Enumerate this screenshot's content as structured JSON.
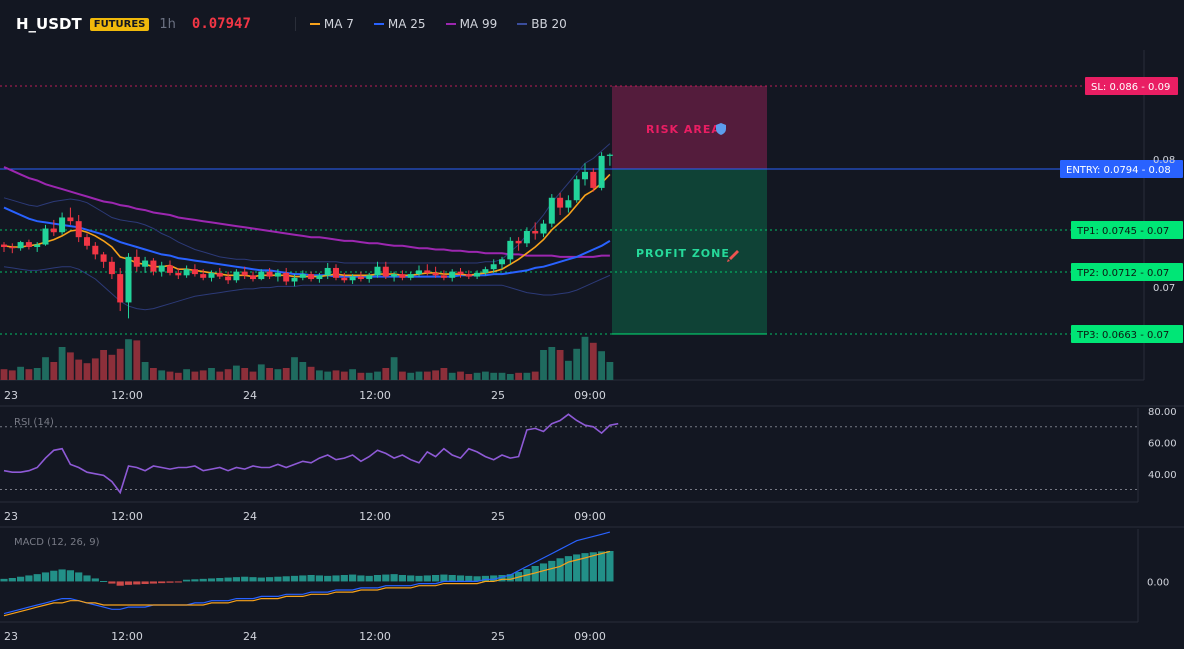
{
  "header": {
    "symbol": "H_USDT",
    "badge": "FUTURES",
    "timeframe": "1h",
    "price": "0.07947",
    "legend": [
      {
        "label": "MA 7",
        "color": "#f7a21b"
      },
      {
        "label": "MA 25",
        "color": "#2962ff"
      },
      {
        "label": "MA 99",
        "color": "#9c27b0"
      },
      {
        "label": "BB 20",
        "color": "#3a4d9c"
      }
    ]
  },
  "colors": {
    "up": "#22d39a",
    "down": "#f23645",
    "vol_up": "#1f6b5f",
    "vol_down": "#8c2f3a",
    "background": "#131722"
  },
  "zones": {
    "risk_label": "RISK AREA",
    "profit_label": "PROFIT ZONE"
  },
  "levels": [
    {
      "name": "sl",
      "label": "SL: 0.086",
      "axis_value": "0.09",
      "value": 0.086,
      "color": "#e91e63"
    },
    {
      "name": "entry",
      "label": "ENTRY: 0.0794",
      "axis_value": "0.08",
      "value": 0.0794,
      "color": "#2962ff"
    },
    {
      "name": "tp1",
      "label": "TP1: 0.0745",
      "axis_value": "0.07",
      "value": 0.0745,
      "color": "#00e676"
    },
    {
      "name": "tp2",
      "label": "TP2: 0.0712",
      "axis_value": "0.07",
      "value": 0.0712,
      "color": "#00e676"
    },
    {
      "name": "tp3",
      "label": "TP3: 0.0663",
      "axis_value": "0.07",
      "value": 0.0663,
      "color": "#00e676"
    }
  ],
  "chart_data": {
    "type": "candlestick",
    "price_axis": {
      "min": 0.0612,
      "max": 0.088,
      "ticks": [
        "0.08",
        "0.07"
      ]
    },
    "x_ticks": [
      "23",
      "12:00",
      "24",
      "12:00",
      "25",
      "09:00"
    ],
    "candles": [
      [
        0.0722,
        0.0724,
        0.0716,
        0.072
      ],
      [
        0.072,
        0.0723,
        0.0715,
        0.0719
      ],
      [
        0.0719,
        0.0725,
        0.0717,
        0.0724
      ],
      [
        0.0724,
        0.0726,
        0.0718,
        0.072
      ],
      [
        0.072,
        0.0724,
        0.0716,
        0.0722
      ],
      [
        0.0722,
        0.0738,
        0.0721,
        0.0735
      ],
      [
        0.0735,
        0.0742,
        0.0729,
        0.0732
      ],
      [
        0.0732,
        0.0748,
        0.073,
        0.0744
      ],
      [
        0.0744,
        0.0752,
        0.0738,
        0.0741
      ],
      [
        0.0741,
        0.0746,
        0.0724,
        0.0728
      ],
      [
        0.0728,
        0.0731,
        0.0718,
        0.0721
      ],
      [
        0.0721,
        0.0724,
        0.071,
        0.0714
      ],
      [
        0.0714,
        0.0716,
        0.0703,
        0.0708
      ],
      [
        0.0708,
        0.0712,
        0.0694,
        0.0698
      ],
      [
        0.0698,
        0.0703,
        0.0668,
        0.0675
      ],
      [
        0.0675,
        0.0715,
        0.0662,
        0.0712
      ],
      [
        0.0712,
        0.0718,
        0.07,
        0.0704
      ],
      [
        0.0704,
        0.0712,
        0.0699,
        0.0709
      ],
      [
        0.0709,
        0.0711,
        0.0697,
        0.07
      ],
      [
        0.07,
        0.0708,
        0.0696,
        0.0705
      ],
      [
        0.0705,
        0.0709,
        0.0697,
        0.0699
      ],
      [
        0.0699,
        0.0703,
        0.0694,
        0.0697
      ],
      [
        0.0697,
        0.0705,
        0.0695,
        0.0702
      ],
      [
        0.0702,
        0.0706,
        0.0696,
        0.0698
      ],
      [
        0.0698,
        0.0702,
        0.0693,
        0.0695
      ],
      [
        0.0695,
        0.0701,
        0.0692,
        0.0699
      ],
      [
        0.0699,
        0.0703,
        0.0694,
        0.0696
      ],
      [
        0.0696,
        0.07,
        0.069,
        0.0693
      ],
      [
        0.0693,
        0.0702,
        0.0691,
        0.07
      ],
      [
        0.07,
        0.0704,
        0.0694,
        0.0697
      ],
      [
        0.0697,
        0.07,
        0.0692,
        0.0694
      ],
      [
        0.0694,
        0.0702,
        0.0693,
        0.07
      ],
      [
        0.07,
        0.0703,
        0.0694,
        0.0696
      ],
      [
        0.0696,
        0.0702,
        0.0692,
        0.0699
      ],
      [
        0.0699,
        0.0703,
        0.0689,
        0.0692
      ],
      [
        0.0692,
        0.0698,
        0.0688,
        0.0695
      ],
      [
        0.0695,
        0.0701,
        0.0693,
        0.0698
      ],
      [
        0.0698,
        0.07,
        0.0692,
        0.0694
      ],
      [
        0.0694,
        0.0699,
        0.0691,
        0.0697
      ],
      [
        0.0697,
        0.0707,
        0.0694,
        0.0703
      ],
      [
        0.0703,
        0.0706,
        0.0693,
        0.0695
      ],
      [
        0.0695,
        0.0699,
        0.0691,
        0.0693
      ],
      [
        0.0693,
        0.0698,
        0.069,
        0.0696
      ],
      [
        0.0696,
        0.07,
        0.0692,
        0.0694
      ],
      [
        0.0694,
        0.0699,
        0.0691,
        0.0697
      ],
      [
        0.0697,
        0.0708,
        0.0695,
        0.0704
      ],
      [
        0.0704,
        0.0708,
        0.0694,
        0.0696
      ],
      [
        0.0696,
        0.07,
        0.0692,
        0.0698
      ],
      [
        0.0698,
        0.0701,
        0.0693,
        0.0695
      ],
      [
        0.0695,
        0.07,
        0.0693,
        0.0698
      ],
      [
        0.0698,
        0.0705,
        0.0696,
        0.0701
      ],
      [
        0.0701,
        0.0706,
        0.0697,
        0.0699
      ],
      [
        0.0699,
        0.0704,
        0.0695,
        0.0697
      ],
      [
        0.0697,
        0.0701,
        0.0693,
        0.0695
      ],
      [
        0.0695,
        0.0702,
        0.0692,
        0.07
      ],
      [
        0.07,
        0.0703,
        0.0695,
        0.0698
      ],
      [
        0.0698,
        0.0701,
        0.0694,
        0.0696
      ],
      [
        0.0696,
        0.0701,
        0.0694,
        0.0699
      ],
      [
        0.0699,
        0.0704,
        0.0697,
        0.0702
      ],
      [
        0.0702,
        0.071,
        0.0699,
        0.0706
      ],
      [
        0.0706,
        0.0712,
        0.0702,
        0.071
      ],
      [
        0.071,
        0.0728,
        0.0706,
        0.0725
      ],
      [
        0.0725,
        0.0728,
        0.0717,
        0.0723
      ],
      [
        0.0723,
        0.0736,
        0.072,
        0.0733
      ],
      [
        0.0733,
        0.074,
        0.0726,
        0.0731
      ],
      [
        0.0731,
        0.0742,
        0.0728,
        0.0739
      ],
      [
        0.0739,
        0.0763,
        0.0736,
        0.076
      ],
      [
        0.076,
        0.0764,
        0.0746,
        0.0752
      ],
      [
        0.0752,
        0.0762,
        0.0748,
        0.0758
      ],
      [
        0.0758,
        0.0778,
        0.0756,
        0.0775
      ],
      [
        0.0775,
        0.0788,
        0.077,
        0.0781
      ],
      [
        0.0781,
        0.0784,
        0.0765,
        0.0768
      ],
      [
        0.0768,
        0.0797,
        0.0766,
        0.0794
      ],
      [
        0.0794,
        0.0796,
        0.0786,
        0.0795
      ]
    ],
    "volume": [
      0.18,
      0.16,
      0.22,
      0.18,
      0.2,
      0.38,
      0.3,
      0.55,
      0.46,
      0.34,
      0.28,
      0.36,
      0.5,
      0.42,
      0.52,
      0.68,
      0.66,
      0.3,
      0.2,
      0.16,
      0.14,
      0.12,
      0.18,
      0.14,
      0.16,
      0.2,
      0.14,
      0.18,
      0.24,
      0.2,
      0.14,
      0.26,
      0.2,
      0.18,
      0.2,
      0.38,
      0.3,
      0.22,
      0.16,
      0.14,
      0.16,
      0.14,
      0.18,
      0.12,
      0.12,
      0.14,
      0.2,
      0.38,
      0.14,
      0.12,
      0.14,
      0.14,
      0.16,
      0.2,
      0.12,
      0.14,
      0.1,
      0.12,
      0.14,
      0.12,
      0.12,
      0.1,
      0.12,
      0.12,
      0.14,
      0.5,
      0.55,
      0.5,
      0.32,
      0.52,
      0.72,
      0.62,
      0.48,
      0.3
    ],
    "ma7": [
      0.0721,
      0.072,
      0.072,
      0.0721,
      0.0722,
      0.0724,
      0.0726,
      0.0729,
      0.0733,
      0.0734,
      0.0732,
      0.0729,
      0.0725,
      0.072,
      0.0712,
      0.071,
      0.0707,
      0.0706,
      0.0704,
      0.0704,
      0.0705,
      0.0702,
      0.0702,
      0.0701,
      0.07,
      0.0699,
      0.0698,
      0.0697,
      0.0697,
      0.0697,
      0.0696,
      0.0697,
      0.0697,
      0.0697,
      0.0697,
      0.0696,
      0.0696,
      0.0696,
      0.0696,
      0.0697,
      0.0698,
      0.0697,
      0.0697,
      0.0697,
      0.0697,
      0.0698,
      0.0698,
      0.0698,
      0.0697,
      0.0697,
      0.0698,
      0.0699,
      0.0699,
      0.0698,
      0.0698,
      0.0698,
      0.0697,
      0.0698,
      0.0699,
      0.07,
      0.0702,
      0.0706,
      0.071,
      0.0715,
      0.072,
      0.0726,
      0.0734,
      0.074,
      0.0746,
      0.0754,
      0.0762,
      0.0766,
      0.0772,
      0.0779
    ],
    "ma25": [
      0.0752,
      0.0749,
      0.0746,
      0.0743,
      0.0741,
      0.074,
      0.0739,
      0.0738,
      0.0737,
      0.0736,
      0.0734,
      0.0732,
      0.073,
      0.0727,
      0.0724,
      0.0722,
      0.072,
      0.0718,
      0.0716,
      0.0714,
      0.0713,
      0.0711,
      0.071,
      0.0709,
      0.0708,
      0.0707,
      0.0706,
      0.0705,
      0.0704,
      0.0703,
      0.0702,
      0.0701,
      0.0701,
      0.07,
      0.0699,
      0.0698,
      0.0698,
      0.0697,
      0.0697,
      0.0697,
      0.0696,
      0.0696,
      0.0696,
      0.0696,
      0.0696,
      0.0696,
      0.0696,
      0.0696,
      0.0696,
      0.0696,
      0.0696,
      0.0696,
      0.0696,
      0.0696,
      0.0696,
      0.0697,
      0.0697,
      0.0697,
      0.0697,
      0.0698,
      0.0698,
      0.0699,
      0.07,
      0.0701,
      0.0703,
      0.0704,
      0.0706,
      0.0708,
      0.071,
      0.0712,
      0.0715,
      0.0718,
      0.0721,
      0.0725
    ],
    "ma99": [
      0.0785,
      0.0782,
      0.0779,
      0.0776,
      0.0774,
      0.0771,
      0.0769,
      0.0767,
      0.0765,
      0.0763,
      0.0761,
      0.0759,
      0.0757,
      0.0756,
      0.0754,
      0.0753,
      0.0751,
      0.075,
      0.0748,
      0.0747,
      0.0746,
      0.0744,
      0.0743,
      0.0742,
      0.0741,
      0.074,
      0.0739,
      0.0738,
      0.0737,
      0.0736,
      0.0735,
      0.0734,
      0.0733,
      0.0732,
      0.0731,
      0.073,
      0.0729,
      0.0728,
      0.0728,
      0.0727,
      0.0726,
      0.0725,
      0.0725,
      0.0724,
      0.0723,
      0.0723,
      0.0722,
      0.0721,
      0.0721,
      0.072,
      0.0719,
      0.0719,
      0.0718,
      0.0718,
      0.0717,
      0.0717,
      0.0716,
      0.0716,
      0.0715,
      0.0715,
      0.0715,
      0.0714,
      0.0714,
      0.0713,
      0.0713,
      0.0713,
      0.0713,
      0.0712,
      0.0712,
      0.0712,
      0.0712,
      0.0712,
      0.0713,
      0.0713
    ],
    "bb_upper": [
      0.076,
      0.0758,
      0.0756,
      0.0754,
      0.0753,
      0.0755,
      0.0757,
      0.0758,
      0.0759,
      0.0758,
      0.0756,
      0.0752,
      0.0748,
      0.0744,
      0.0742,
      0.0741,
      0.074,
      0.0738,
      0.0735,
      0.0731,
      0.0728,
      0.0724,
      0.0721,
      0.0718,
      0.0716,
      0.0714,
      0.0712,
      0.0711,
      0.071,
      0.071,
      0.0709,
      0.0709,
      0.0709,
      0.0708,
      0.0708,
      0.0708,
      0.0708,
      0.0708,
      0.0708,
      0.0708,
      0.0708,
      0.0707,
      0.0707,
      0.0707,
      0.0707,
      0.0707,
      0.0707,
      0.0707,
      0.0707,
      0.0707,
      0.0707,
      0.0707,
      0.0707,
      0.0707,
      0.0707,
      0.0707,
      0.0707,
      0.0707,
      0.0708,
      0.0708,
      0.071,
      0.0716,
      0.0722,
      0.073,
      0.0738,
      0.0746,
      0.0756,
      0.0764,
      0.0772,
      0.078,
      0.0788,
      0.0792,
      0.0798,
      0.0804
    ],
    "bb_lower": [
      0.0704,
      0.0703,
      0.0702,
      0.0701,
      0.0701,
      0.0702,
      0.0703,
      0.0704,
      0.0704,
      0.0702,
      0.0698,
      0.0694,
      0.0688,
      0.0682,
      0.0676,
      0.0672,
      0.067,
      0.0669,
      0.067,
      0.0672,
      0.0674,
      0.0676,
      0.0678,
      0.068,
      0.0681,
      0.0682,
      0.0683,
      0.0684,
      0.0685,
      0.0686,
      0.0686,
      0.0687,
      0.0687,
      0.0688,
      0.0688,
      0.0688,
      0.0689,
      0.0689,
      0.0689,
      0.0689,
      0.0689,
      0.0689,
      0.0689,
      0.0689,
      0.0689,
      0.0689,
      0.0689,
      0.0689,
      0.0689,
      0.0689,
      0.0689,
      0.0689,
      0.0689,
      0.0689,
      0.0689,
      0.0689,
      0.0689,
      0.0689,
      0.0689,
      0.0689,
      0.0689,
      0.0687,
      0.0685,
      0.0683,
      0.0682,
      0.0681,
      0.0681,
      0.0682,
      0.0683,
      0.0685,
      0.0688,
      0.0691,
      0.0694,
      0.0697
    ],
    "rsi": {
      "label": "RSI (14)",
      "ticks": [
        "80.00",
        "60.00",
        "40.00"
      ],
      "levels": [
        70,
        30
      ],
      "range": [
        22,
        82
      ],
      "values": [
        42,
        41,
        41,
        42,
        44,
        50,
        55,
        56,
        46,
        44,
        41,
        40,
        39,
        35,
        28,
        45,
        44,
        42,
        45,
        44,
        43,
        44,
        44,
        45,
        42,
        43,
        44,
        42,
        44,
        43,
        45,
        44,
        44,
        46,
        44,
        46,
        48,
        47,
        50,
        52,
        49,
        50,
        52,
        48,
        51,
        55,
        53,
        50,
        52,
        49,
        47,
        54,
        51,
        56,
        52,
        50,
        56,
        54,
        51,
        49,
        52,
        50,
        51,
        68,
        69,
        67,
        72,
        74,
        78,
        74,
        71,
        70,
        66,
        71,
        72
      ]
    },
    "macd": {
      "label": "MACD (12, 26, 9)",
      "ticks": [
        "0.00"
      ],
      "range": [
        -0.0018,
        0.0024
      ],
      "hist": [
        0.00012,
        0.00016,
        0.00022,
        0.00028,
        0.00034,
        0.00042,
        0.0005,
        0.00056,
        0.00052,
        0.00042,
        0.00028,
        0.00014,
        2e-05,
        -0.0001,
        -0.0002,
        -0.00016,
        -0.00014,
        -0.00012,
        -0.0001,
        -8e-05,
        -6e-05,
        -5e-05,
        8e-05,
        0.0001,
        0.00012,
        0.00014,
        0.00016,
        0.00018,
        0.0002,
        0.00022,
        0.0002,
        0.00018,
        0.0002,
        0.00022,
        0.00024,
        0.00026,
        0.00028,
        0.0003,
        0.00028,
        0.00026,
        0.00028,
        0.0003,
        0.00032,
        0.00028,
        0.00026,
        0.0003,
        0.00032,
        0.00034,
        0.0003,
        0.00028,
        0.00026,
        0.00028,
        0.0003,
        0.00032,
        0.0003,
        0.00028,
        0.00026,
        0.00024,
        0.00026,
        0.00028,
        0.0003,
        0.00034,
        0.00044,
        0.00058,
        0.00072,
        0.00084,
        0.00096,
        0.00108,
        0.00118,
        0.00126,
        0.00132,
        0.00136,
        0.0014,
        0.00142
      ],
      "macd_line": [
        -0.0015,
        -0.0014,
        -0.0013,
        -0.0012,
        -0.0011,
        -0.001,
        -0.0009,
        -0.0008,
        -0.0008,
        -0.0009,
        -0.001,
        -0.0011,
        -0.0012,
        -0.0013,
        -0.0013,
        -0.0012,
        -0.0012,
        -0.0012,
        -0.0011,
        -0.0011,
        -0.0011,
        -0.0011,
        -0.0011,
        -0.001,
        -0.001,
        -0.0009,
        -0.0009,
        -0.0009,
        -0.0008,
        -0.0008,
        -0.0008,
        -0.0007,
        -0.0007,
        -0.0007,
        -0.0006,
        -0.0006,
        -0.0006,
        -0.0005,
        -0.0005,
        -0.0005,
        -0.0004,
        -0.0004,
        -0.0004,
        -0.0003,
        -0.0003,
        -0.0003,
        -0.0002,
        -0.0002,
        -0.0002,
        -0.0002,
        -0.0001,
        -0.0001,
        -0.0001,
        0.0,
        0.0,
        0.0,
        0.0,
        0.0,
        0.0001,
        0.0001,
        0.0002,
        0.0003,
        0.0005,
        0.0007,
        0.0009,
        0.0011,
        0.0013,
        0.0015,
        0.0017,
        0.0019,
        0.002,
        0.0021,
        0.0022,
        0.0023
      ],
      "signal_line": [
        -0.0016,
        -0.0015,
        -0.0014,
        -0.0013,
        -0.0012,
        -0.0011,
        -0.001,
        -0.001,
        -0.0009,
        -0.0009,
        -0.001,
        -0.001,
        -0.0011,
        -0.0011,
        -0.0011,
        -0.0011,
        -0.0011,
        -0.0011,
        -0.0011,
        -0.0011,
        -0.0011,
        -0.0011,
        -0.0011,
        -0.0011,
        -0.0011,
        -0.001,
        -0.001,
        -0.001,
        -0.0009,
        -0.0009,
        -0.0009,
        -0.0008,
        -0.0008,
        -0.0008,
        -0.0007,
        -0.0007,
        -0.0007,
        -0.0006,
        -0.0006,
        -0.0006,
        -0.0005,
        -0.0005,
        -0.0005,
        -0.0004,
        -0.0004,
        -0.0004,
        -0.0003,
        -0.0003,
        -0.0003,
        -0.0003,
        -0.0002,
        -0.0002,
        -0.0002,
        -0.0001,
        -0.0001,
        -0.0001,
        -0.0001,
        -0.0001,
        0.0,
        0.0,
        0.0001,
        0.0001,
        0.0002,
        0.0003,
        0.0004,
        0.0005,
        0.0006,
        0.0007,
        0.0009,
        0.001,
        0.0011,
        0.0012,
        0.0013,
        0.0014
      ]
    }
  }
}
